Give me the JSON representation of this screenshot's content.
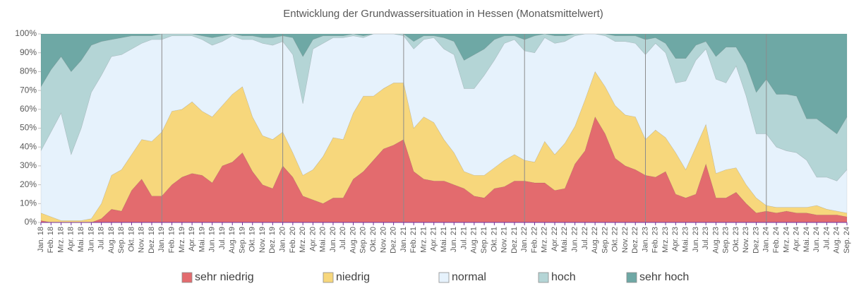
{
  "chart_data": {
    "type": "stacked_area",
    "title": "Entwicklung der Grundwassersituation in Hessen (Monatsmittelwert)",
    "categories": [
      "Jan. 18",
      "Feb. 18",
      "Mrz. 18",
      "Apr. 18",
      "Mai. 18",
      "Jun. 18",
      "Jul. 18",
      "Aug. 18",
      "Sep. 18",
      "Okt. 18",
      "Nov. 18",
      "Dez. 18",
      "Jan. 19",
      "Feb. 19",
      "Mrz. 19",
      "Apr. 19",
      "Mai. 19",
      "Jun. 19",
      "Jul. 19",
      "Aug. 19",
      "Sep. 19",
      "Okt. 19",
      "Nov. 19",
      "Dez. 19",
      "Jan. 20",
      "Feb. 20",
      "Mrz. 20",
      "Apr. 20",
      "Mai. 20",
      "Jun. 20",
      "Jul. 20",
      "Aug. 20",
      "Sep. 20",
      "Okt. 20",
      "Nov. 20",
      "Dez. 20",
      "Jan. 21",
      "Feb. 21",
      "Mrz. 21",
      "Apr. 21",
      "Mai. 21",
      "Jun. 21",
      "Jul. 21",
      "Aug. 21",
      "Sep. 21",
      "Okt. 21",
      "Nov. 21",
      "Dez. 21",
      "Jan. 22",
      "Feb. 22",
      "Mrz. 22",
      "Apr. 22",
      "Mai. 22",
      "Jun. 22",
      "Jul. 22",
      "Aug. 22",
      "Sep. 22",
      "Okt. 22",
      "Nov. 22",
      "Dez. 22",
      "Jan. 23",
      "Feb. 23",
      "Mrz. 23",
      "Apr. 23",
      "Mai. 23",
      "Jun. 23",
      "Jul. 23",
      "Aug. 23",
      "Sep. 23",
      "Okt. 23",
      "Nov. 23",
      "Dez. 23",
      "Jan. 24",
      "Feb. 24",
      "Mrz. 24",
      "Apr. 24",
      "Mai. 24",
      "Jun. 24",
      "Jul. 24",
      "Aug. 24",
      "Sep. 24"
    ],
    "series": [
      {
        "name": "sehr niedrig",
        "color": "#e36b6e",
        "values": [
          1,
          0,
          0,
          0,
          0,
          0,
          2,
          7,
          6,
          17,
          23,
          14,
          14,
          20,
          24,
          26,
          25,
          21,
          30,
          32,
          37,
          27,
          20,
          18,
          30,
          24,
          14,
          12,
          10,
          13,
          13,
          23,
          27,
          33,
          39,
          41,
          44,
          27,
          23,
          22,
          22,
          20,
          18,
          14,
          13,
          18,
          19,
          22,
          22,
          21,
          21,
          17,
          18,
          31,
          38,
          56,
          47,
          34,
          30,
          28,
          25,
          24,
          27,
          15,
          13,
          15,
          31,
          13,
          13,
          16,
          10,
          5,
          6,
          5,
          6,
          5,
          5,
          4,
          4,
          4,
          3
        ]
      },
      {
        "name": "niedrig",
        "color": "#f7d77c",
        "values": [
          4,
          3,
          1,
          1,
          1,
          2,
          8,
          18,
          22,
          19,
          21,
          29,
          34,
          39,
          36,
          38,
          34,
          35,
          32,
          36,
          35,
          29,
          26,
          26,
          18,
          13,
          11,
          16,
          25,
          32,
          31,
          35,
          40,
          34,
          32,
          33,
          30,
          23,
          33,
          31,
          22,
          17,
          9,
          11,
          12,
          11,
          14,
          14,
          11,
          11,
          22,
          19,
          24,
          20,
          27,
          24,
          25,
          28,
          27,
          28,
          19,
          25,
          18,
          22,
          15,
          25,
          21,
          13,
          15,
          13,
          10,
          8,
          3,
          3,
          2,
          3,
          3,
          5,
          3,
          2,
          2
        ]
      },
      {
        "name": "normal",
        "color": "#e6f2fc",
        "values": [
          33,
          45,
          57,
          35,
          49,
          67,
          68,
          63,
          61,
          56,
          51,
          54,
          49,
          40,
          39,
          35,
          38,
          38,
          34,
          31,
          25,
          41,
          49,
          50,
          48,
          52,
          38,
          64,
          60,
          53,
          54,
          41,
          31,
          33,
          29,
          26,
          25,
          42,
          41,
          45,
          48,
          52,
          44,
          46,
          53,
          57,
          62,
          61,
          58,
          58,
          55,
          59,
          54,
          48,
          35,
          20,
          27,
          34,
          39,
          39,
          45,
          46,
          45,
          37,
          47,
          46,
          40,
          50,
          46,
          54,
          47,
          34,
          38,
          32,
          30,
          29,
          25,
          15,
          17,
          16,
          23
        ]
      },
      {
        "name": "hoch",
        "color": "#b4d5d6",
        "values": [
          34,
          33,
          30,
          44,
          36,
          25,
          18,
          9,
          9,
          7,
          4,
          2,
          3,
          1,
          1,
          1,
          2,
          4,
          3,
          1,
          2,
          2,
          3,
          4,
          3,
          9,
          25,
          5,
          4,
          1,
          1,
          1,
          1,
          0,
          0,
          0,
          1,
          4,
          2,
          1,
          6,
          7,
          15,
          18,
          14,
          11,
          4,
          2,
          6,
          9,
          2,
          4,
          3,
          1,
          0,
          0,
          1,
          3,
          3,
          4,
          8,
          3,
          5,
          13,
          12,
          8,
          4,
          12,
          19,
          10,
          17,
          22,
          29,
          28,
          30,
          30,
          22,
          31,
          27,
          25,
          28
        ]
      },
      {
        "name": "sehr hoch",
        "color": "#6ea8a5",
        "values": [
          28,
          19,
          12,
          20,
          14,
          6,
          4,
          3,
          2,
          1,
          1,
          1,
          0,
          0,
          0,
          0,
          1,
          2,
          1,
          0,
          1,
          1,
          2,
          2,
          1,
          2,
          12,
          3,
          1,
          1,
          1,
          0,
          1,
          0,
          0,
          0,
          0,
          4,
          1,
          1,
          2,
          4,
          14,
          11,
          8,
          3,
          1,
          1,
          3,
          1,
          0,
          1,
          1,
          0,
          0,
          0,
          0,
          1,
          1,
          1,
          3,
          2,
          5,
          13,
          13,
          6,
          4,
          12,
          7,
          7,
          16,
          31,
          24,
          32,
          32,
          33,
          45,
          45,
          49,
          53,
          44
        ]
      }
    ],
    "ylim": [
      0,
      100
    ],
    "yticks": [
      {
        "value": 0,
        "label": "0%"
      },
      {
        "value": 10,
        "label": "10%"
      },
      {
        "value": 20,
        "label": "20%"
      },
      {
        "value": 30,
        "label": "30%"
      },
      {
        "value": 40,
        "label": "40%"
      },
      {
        "value": 50,
        "label": "50%"
      },
      {
        "value": 60,
        "label": "60%"
      },
      {
        "value": 70,
        "label": "70%"
      },
      {
        "value": 80,
        "label": "80%"
      },
      {
        "value": 90,
        "label": "90%"
      },
      {
        "value": 100,
        "label": "100%"
      }
    ],
    "legend": "bottom"
  }
}
